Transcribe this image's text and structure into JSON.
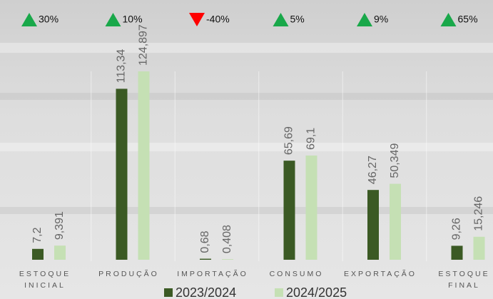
{
  "chart_data": {
    "type": "bar",
    "categories": [
      "ESTOQUE INICIAL",
      "PRODUÇÃO",
      "IMPORTAÇÃO",
      "CONSUMO",
      "EXPORTAÇÃO",
      "ESTOQUE FINAL"
    ],
    "series": [
      {
        "name": "2023/2024",
        "color": "#3b5a24",
        "values": [
          7.2,
          113.34,
          0.68,
          65.69,
          46.27,
          9.26
        ],
        "value_labels": [
          "7,2",
          "113,34",
          "0,68",
          "65,69",
          "46,27",
          "9,26"
        ]
      },
      {
        "name": "2024/2025",
        "color": "#c5e0b4",
        "values": [
          9.391,
          124.897,
          0.408,
          69.1,
          50.349,
          15.246
        ],
        "value_labels": [
          "9,391",
          "124,897",
          "0,408",
          "69,1",
          "50,349",
          "15,246"
        ]
      }
    ],
    "changes": {
      "values": [
        30,
        10,
        -40,
        5,
        9,
        65
      ],
      "labels": [
        "30%",
        "10%",
        "-40%",
        "5%",
        "9%",
        "65%"
      ],
      "up_color": "#19a84a",
      "down_color": "#ff0000"
    }
  }
}
